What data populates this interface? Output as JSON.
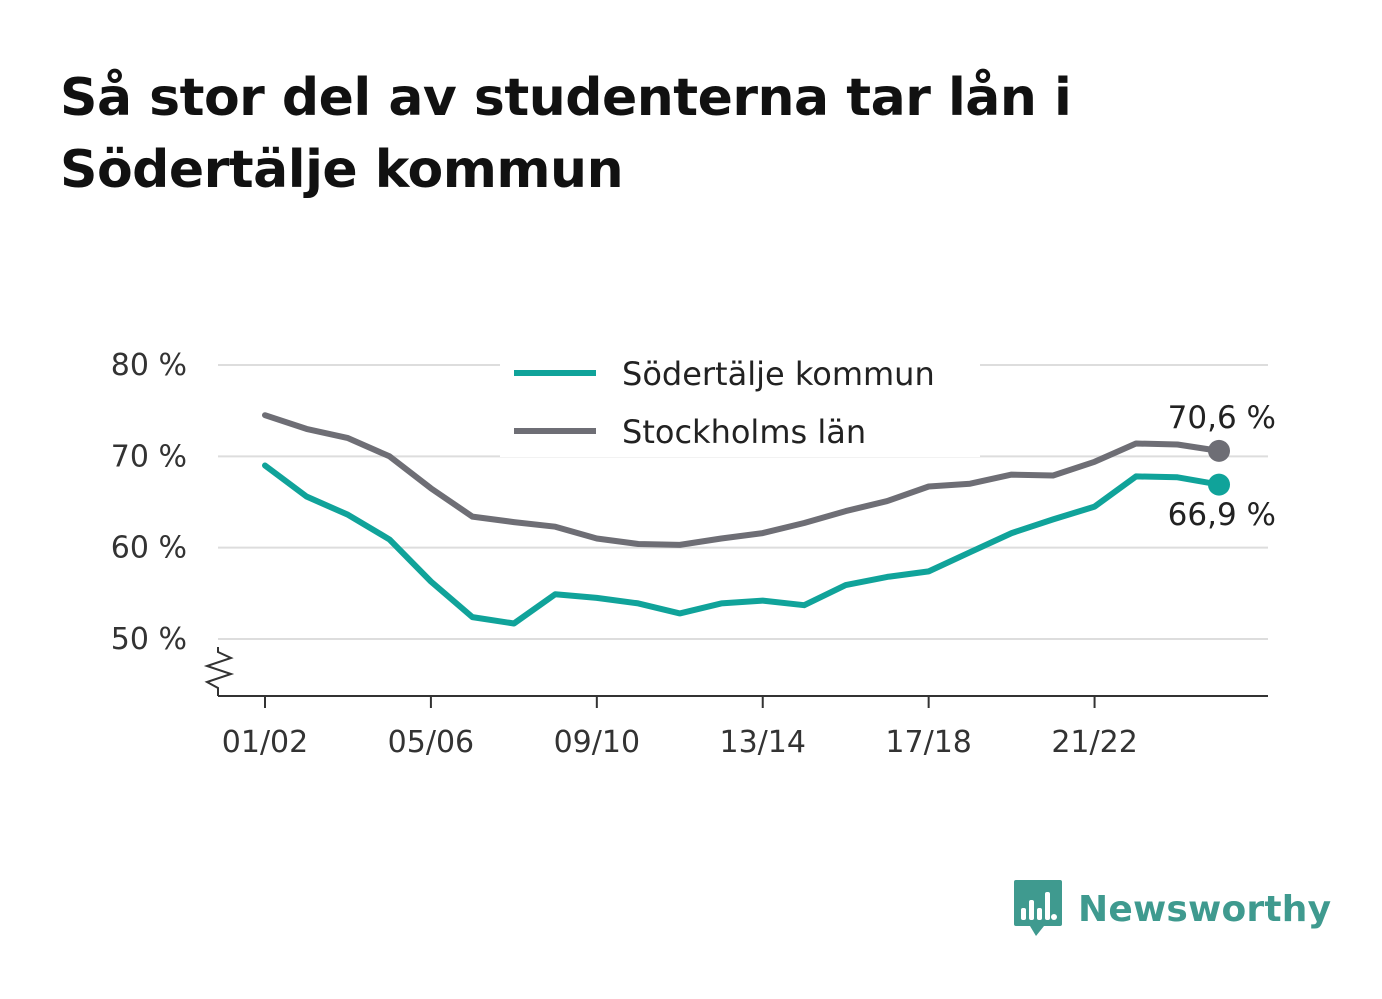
{
  "title": "Så stor del av studenterna tar lån i Södertälje kommun",
  "brand": {
    "name": "Newsworthy",
    "color": "#3f9a8f",
    "icon": "bar-chart-speech-bubble-icon"
  },
  "colors": {
    "sodertalje": "#10a39a",
    "stockholm": "#6e6e75",
    "grid": "#dddddd",
    "axis": "#333333"
  },
  "chart_data": {
    "type": "line",
    "title": "Så stor del av studenterna tar lån i Södertälje kommun",
    "xlabel": "",
    "ylabel": "",
    "x": [
      "01/02",
      "02/03",
      "03/04",
      "04/05",
      "05/06",
      "06/07",
      "07/08",
      "08/09",
      "09/10",
      "10/11",
      "11/12",
      "12/13",
      "13/14",
      "14/15",
      "15/16",
      "16/17",
      "17/18",
      "18/19",
      "19/20",
      "20/21",
      "21/22",
      "22/23",
      "23/24",
      "24/25"
    ],
    "x_tick_labels": [
      "01/02",
      "05/06",
      "09/10",
      "13/14",
      "17/18",
      "21/22"
    ],
    "ylim": [
      44,
      81
    ],
    "y_ticks": [
      50,
      60,
      70,
      80
    ],
    "y_tick_labels": [
      "50 %",
      "60 %",
      "70 %",
      "80 %"
    ],
    "y_axis_break": true,
    "grid": true,
    "legend_position": "top-center",
    "series": [
      {
        "name": "Södertälje kommun",
        "color": "#10a39a",
        "values": [
          69.0,
          65.6,
          63.6,
          60.9,
          56.3,
          52.4,
          51.7,
          54.9,
          54.5,
          53.9,
          52.8,
          53.9,
          54.2,
          53.7,
          55.9,
          56.8,
          57.4,
          59.5,
          61.6,
          63.1,
          64.5,
          67.8,
          67.7,
          66.9
        ],
        "end_label": "66,9 %"
      },
      {
        "name": "Stockholms län",
        "color": "#6e6e75",
        "values": [
          74.5,
          73.0,
          72.0,
          70.0,
          66.5,
          63.4,
          62.8,
          62.3,
          61.0,
          60.4,
          60.3,
          61.0,
          61.6,
          62.7,
          64.0,
          65.1,
          66.7,
          67.0,
          68.0,
          67.9,
          69.4,
          71.4,
          71.3,
          70.6
        ],
        "end_label": "70,6 %"
      }
    ]
  }
}
